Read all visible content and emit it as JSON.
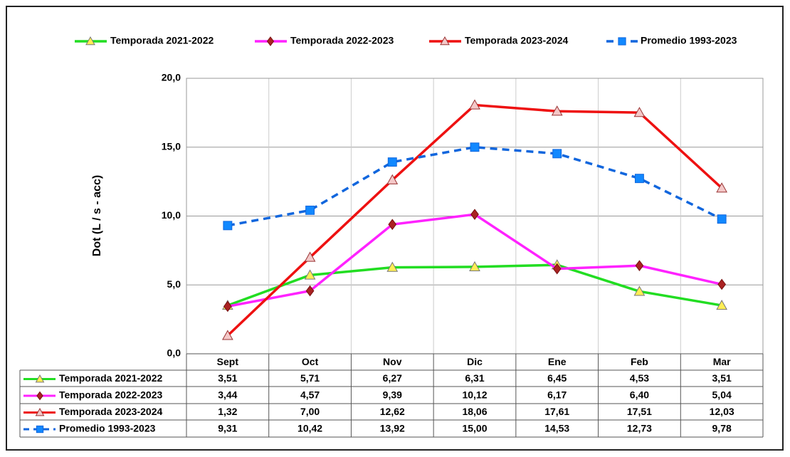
{
  "chart_data": {
    "type": "line",
    "y_label": "Dot (L / s - acc)",
    "categories": [
      "Sept",
      "Oct",
      "Nov",
      "Dic",
      "Ene",
      "Feb",
      "Mar"
    ],
    "ylim": [
      0,
      20
    ],
    "yticks": [
      {
        "value": 0,
        "label": "0,0"
      },
      {
        "value": 5,
        "label": "5,0"
      },
      {
        "value": 10,
        "label": "10,0"
      },
      {
        "value": 15,
        "label": "15,0"
      },
      {
        "value": 20,
        "label": "20,0"
      }
    ],
    "grid": true,
    "legend": "top",
    "series": [
      {
        "name": "Temporada 2021-2022",
        "color": "#22dd22",
        "marker": "triangle",
        "marker_fill": "#ffee55",
        "marker_stroke": "#777777",
        "dashed": false,
        "values": [
          3.51,
          5.71,
          6.27,
          6.31,
          6.45,
          4.53,
          3.51
        ],
        "value_labels": [
          "3,51",
          "5,71",
          "6,27",
          "6,31",
          "6,45",
          "4,53",
          "3,51"
        ]
      },
      {
        "name": "Temporada 2022-2023",
        "color": "#ff22ff",
        "marker": "diamond",
        "marker_fill": "#aa2222",
        "marker_stroke": "#771111",
        "dashed": false,
        "values": [
          3.44,
          4.57,
          9.39,
          10.12,
          6.17,
          6.4,
          5.04
        ],
        "value_labels": [
          "3,44",
          "4,57",
          "9,39",
          "10,12",
          "6,17",
          "6,40",
          "5,04"
        ]
      },
      {
        "name": "Temporada 2023-2024",
        "color": "#ee1111",
        "marker": "triangle",
        "marker_fill": "#f4c8c8",
        "marker_stroke": "#993333",
        "dashed": false,
        "values": [
          1.32,
          7.0,
          12.62,
          18.06,
          17.61,
          17.51,
          12.03
        ],
        "value_labels": [
          "1,32",
          "7,00",
          "12,62",
          "18,06",
          "17,61",
          "17,51",
          "12,03"
        ]
      },
      {
        "name": "Promedio 1993-2023",
        "color": "#1166dd",
        "marker": "square",
        "marker_fill": "#1188ff",
        "marker_stroke": "#1166dd",
        "dashed": true,
        "values": [
          9.31,
          10.42,
          13.92,
          15.0,
          14.53,
          12.73,
          9.78
        ],
        "value_labels": [
          "9,31",
          "10,42",
          "13,92",
          "15,00",
          "14,53",
          "12,73",
          "9,78"
        ]
      }
    ]
  }
}
